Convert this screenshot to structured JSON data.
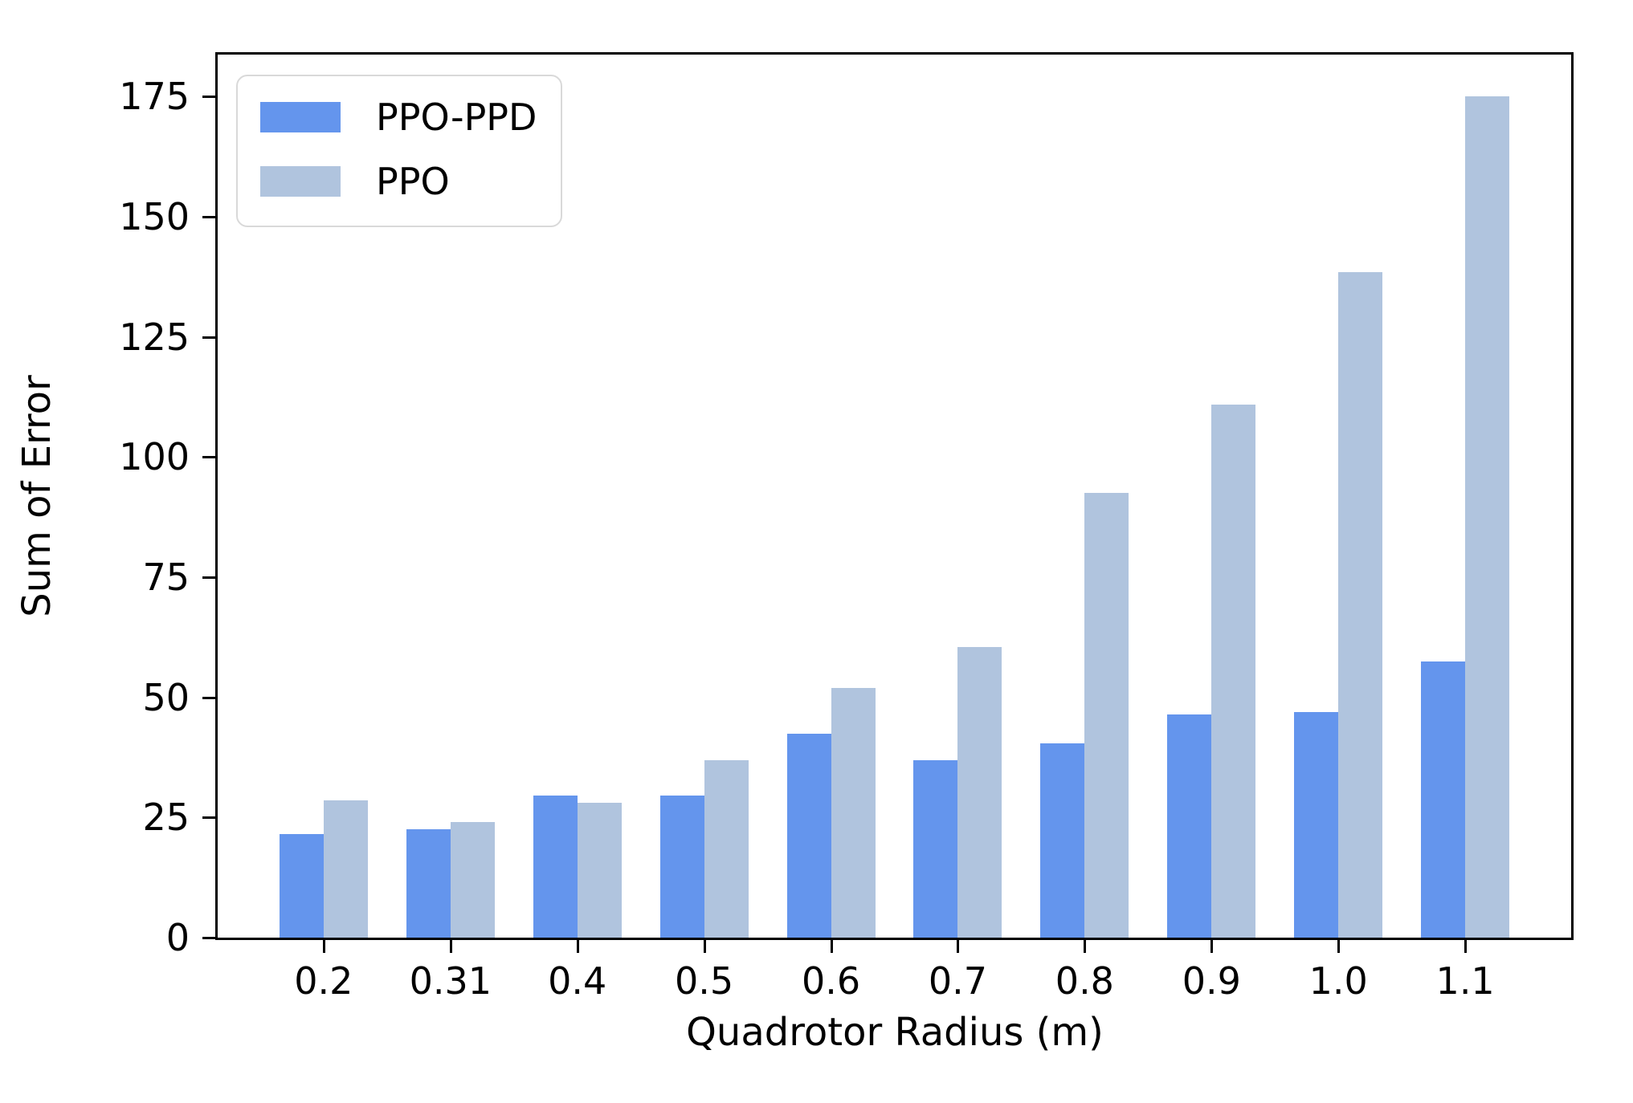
{
  "chart_data": {
    "type": "bar",
    "title": "",
    "xlabel": "Quadrotor Radius (m)",
    "ylabel": "Sum of Error",
    "categories": [
      "0.2",
      "0.31",
      "0.4",
      "0.5",
      "0.6",
      "0.7",
      "0.8",
      "0.9",
      "1.0",
      "1.1"
    ],
    "series": [
      {
        "name": "PPO-PPD",
        "color": "#6495ED",
        "values": [
          21.5,
          22.5,
          29.5,
          29.5,
          42.5,
          37,
          40.5,
          46.5,
          47,
          57.5
        ]
      },
      {
        "name": "PPO",
        "color": "#B0C4DE",
        "values": [
          28.5,
          24,
          28,
          37,
          52,
          60.5,
          92.5,
          111,
          138.5,
          175
        ]
      }
    ],
    "yticks": [
      0,
      25,
      50,
      75,
      100,
      125,
      150,
      175
    ],
    "ylim": [
      0,
      183.75
    ],
    "grid": false,
    "legend_position": "upper-left",
    "colors": {
      "axis": "#000000",
      "background": "#ffffff",
      "legend_border": "#d9d9d9"
    }
  }
}
